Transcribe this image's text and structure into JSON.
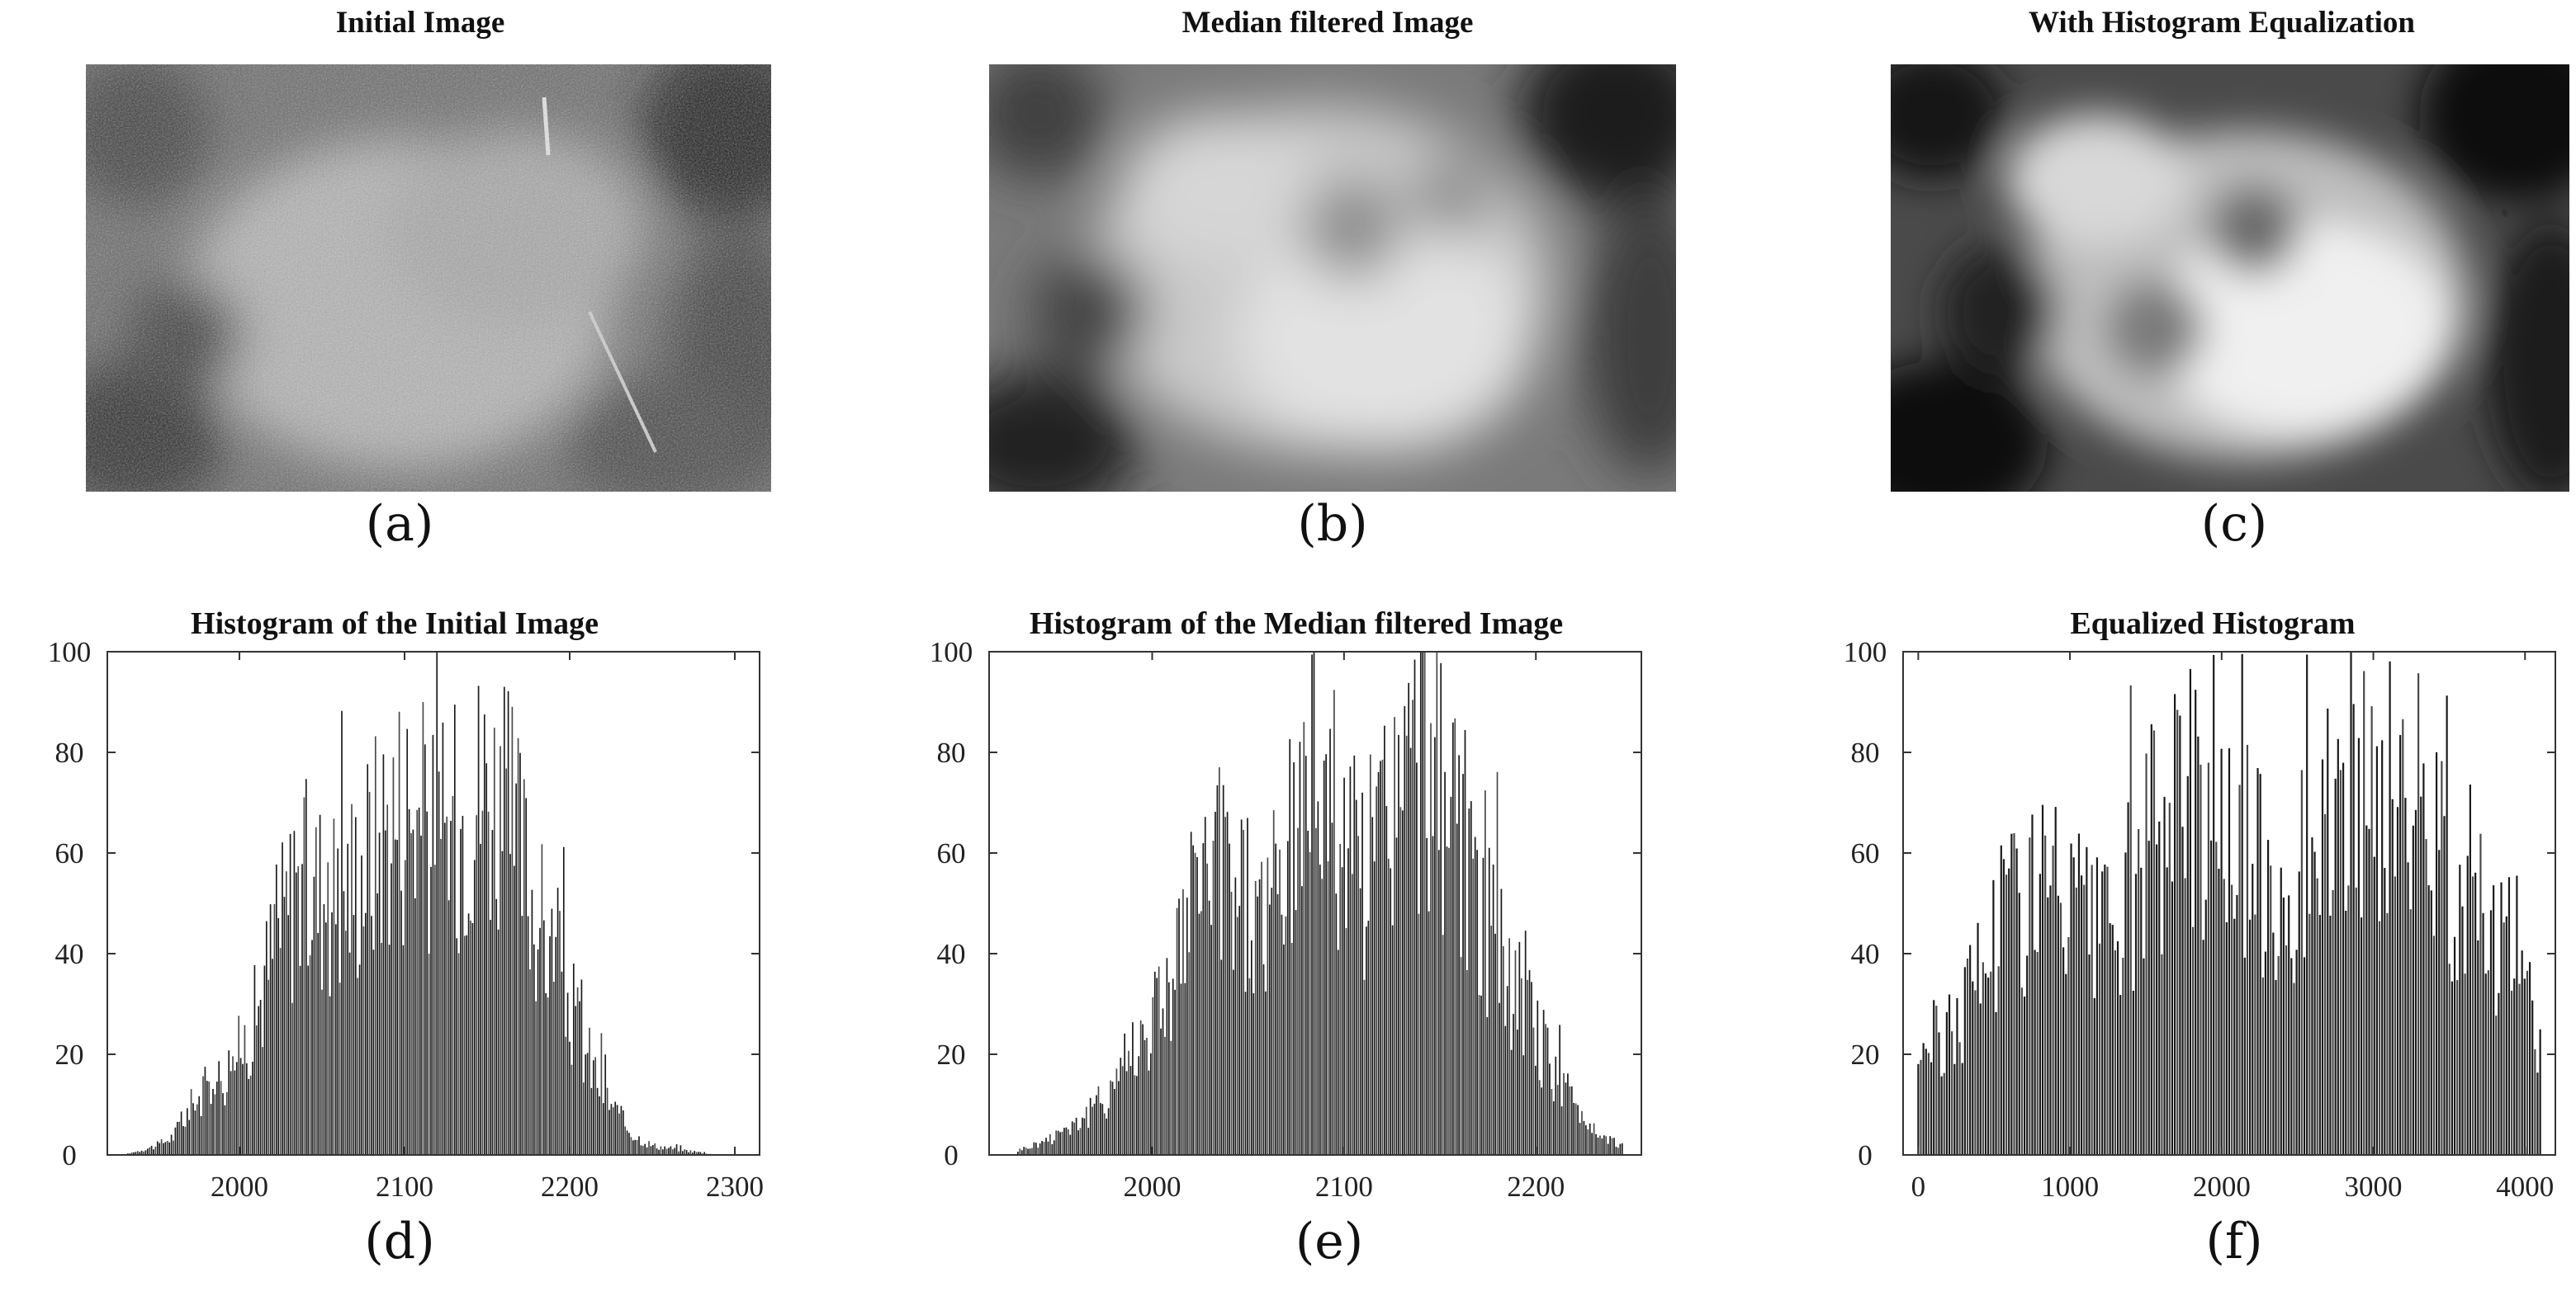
{
  "panels": {
    "a": {
      "title": "Initial Image",
      "caption": "(a)"
    },
    "b": {
      "title": "Median filtered Image",
      "caption": "(b)"
    },
    "c": {
      "title": "With Histogram Equalization",
      "caption": "(c)"
    },
    "d": {
      "caption": "(d)"
    },
    "e": {
      "caption": "(e)"
    },
    "f": {
      "caption": "(f)"
    }
  },
  "chart_data": [
    {
      "type": "bar",
      "title": "Histogram of the Initial Image",
      "xlabel": "",
      "ylabel": "",
      "xlim": [
        1920,
        2315
      ],
      "ylim": [
        0,
        100
      ],
      "xticks": [
        2000,
        2100,
        2200,
        2300
      ],
      "yticks": [
        0,
        20,
        40,
        60,
        80,
        100
      ],
      "bar_color": "#1a1a1a",
      "grid": false,
      "envelope": [
        [
          1930,
          0
        ],
        [
          1950,
          2
        ],
        [
          1960,
          4
        ],
        [
          1970,
          10
        ],
        [
          1980,
          14
        ],
        [
          1990,
          17
        ],
        [
          2000,
          22
        ],
        [
          2010,
          30
        ],
        [
          2020,
          44
        ],
        [
          2030,
          54
        ],
        [
          2040,
          58
        ],
        [
          2050,
          57
        ],
        [
          2060,
          56
        ],
        [
          2070,
          60
        ],
        [
          2080,
          66
        ],
        [
          2090,
          72
        ],
        [
          2100,
          76
        ],
        [
          2110,
          72
        ],
        [
          2120,
          66
        ],
        [
          2130,
          70
        ],
        [
          2140,
          78
        ],
        [
          2150,
          80
        ],
        [
          2160,
          74
        ],
        [
          2170,
          66
        ],
        [
          2180,
          52
        ],
        [
          2190,
          42
        ],
        [
          2200,
          32
        ],
        [
          2210,
          22
        ],
        [
          2220,
          14
        ],
        [
          2230,
          8
        ],
        [
          2240,
          4
        ],
        [
          2250,
          2
        ],
        [
          2270,
          1
        ],
        [
          2290,
          0
        ]
      ]
    },
    {
      "type": "bar",
      "title": "Histogram of the Median filtered Image",
      "xlabel": "",
      "ylabel": "",
      "xlim": [
        1915,
        2255
      ],
      "ylim": [
        0,
        100
      ],
      "xticks": [
        2000,
        2100,
        2200
      ],
      "yticks": [
        0,
        20,
        40,
        60,
        80,
        100
      ],
      "bar_color": "#1a1a1a",
      "grid": false,
      "envelope": [
        [
          1930,
          1
        ],
        [
          1945,
          3
        ],
        [
          1955,
          6
        ],
        [
          1965,
          8
        ],
        [
          1975,
          12
        ],
        [
          1985,
          20
        ],
        [
          1995,
          26
        ],
        [
          2005,
          34
        ],
        [
          2015,
          44
        ],
        [
          2025,
          56
        ],
        [
          2035,
          62
        ],
        [
          2045,
          58
        ],
        [
          2055,
          50
        ],
        [
          2065,
          55
        ],
        [
          2075,
          68
        ],
        [
          2085,
          90
        ],
        [
          2095,
          76
        ],
        [
          2105,
          62
        ],
        [
          2115,
          64
        ],
        [
          2125,
          76
        ],
        [
          2135,
          82
        ],
        [
          2145,
          86
        ],
        [
          2155,
          72
        ],
        [
          2165,
          58
        ],
        [
          2175,
          48
        ],
        [
          2185,
          40
        ],
        [
          2195,
          30
        ],
        [
          2205,
          22
        ],
        [
          2215,
          14
        ],
        [
          2225,
          8
        ],
        [
          2235,
          4
        ],
        [
          2245,
          2
        ]
      ]
    },
    {
      "type": "bar",
      "title": "Equalized Histogram",
      "xlabel": "",
      "ylabel": "",
      "xlim": [
        -100,
        4200
      ],
      "ylim": [
        0,
        100
      ],
      "xticks": [
        0,
        1000,
        2000,
        3000,
        4000
      ],
      "yticks": [
        0,
        20,
        40,
        60,
        80,
        100
      ],
      "bar_color": "#1a1a1a",
      "grid": false,
      "envelope": [
        [
          0,
          22
        ],
        [
          200,
          26
        ],
        [
          400,
          40
        ],
        [
          600,
          55
        ],
        [
          800,
          58
        ],
        [
          1000,
          52
        ],
        [
          1200,
          45
        ],
        [
          1400,
          55
        ],
        [
          1600,
          72
        ],
        [
          1800,
          80
        ],
        [
          2000,
          68
        ],
        [
          2200,
          62
        ],
        [
          2400,
          58
        ],
        [
          2600,
          62
        ],
        [
          2800,
          70
        ],
        [
          3000,
          78
        ],
        [
          3200,
          74
        ],
        [
          3400,
          66
        ],
        [
          3600,
          58
        ],
        [
          3800,
          50
        ],
        [
          4000,
          40
        ],
        [
          4100,
          25
        ]
      ]
    }
  ]
}
